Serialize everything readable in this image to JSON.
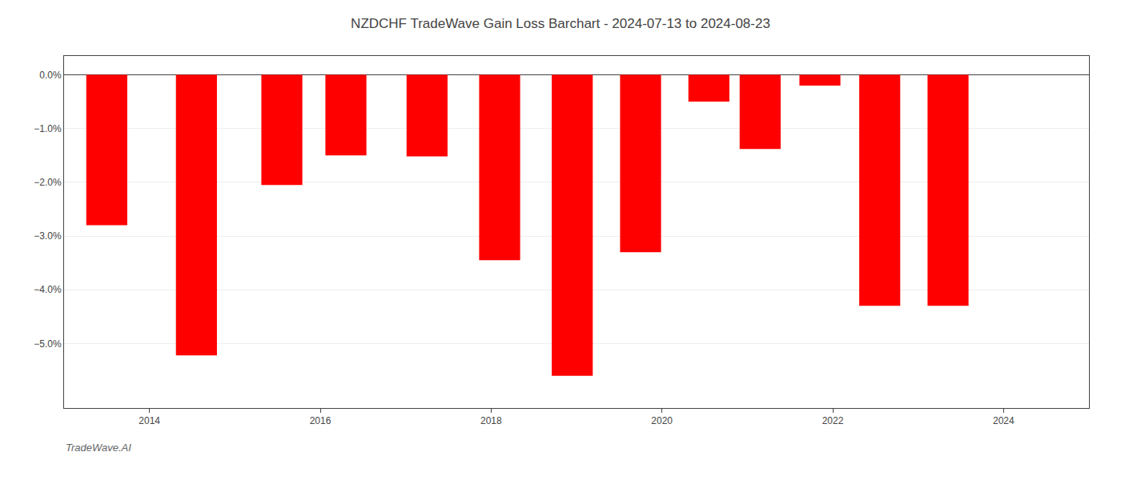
{
  "chart_data": {
    "type": "bar",
    "title": "NZDCHF TradeWave Gain Loss Barchart - 2024-07-13 to 2024-08-23",
    "annotations": [
      "TradeWave.AI"
    ],
    "x": [
      2013.5,
      2014.55,
      2015.55,
      2016.3,
      2017.25,
      2018.1,
      2018.95,
      2019.75,
      2020.55,
      2021.15,
      2021.85,
      2022.55,
      2023.35
    ],
    "values": [
      -2.8,
      -5.22,
      -2.05,
      -1.5,
      -1.52,
      -3.45,
      -5.6,
      -3.3,
      -0.5,
      -1.38,
      -0.2,
      -4.3,
      -4.3
    ],
    "color": "#ff0000",
    "xlim": [
      2013.0,
      2025.0
    ],
    "xticks": [
      2014,
      2016,
      2018,
      2020,
      2022,
      2024
    ],
    "ylim": [
      -6.2,
      0.35
    ],
    "yticks": [
      {
        "value": 0.0,
        "label": "0.0%"
      },
      {
        "value": -1.0,
        "label": "−1.0%"
      },
      {
        "value": -2.0,
        "label": "−2.0%"
      },
      {
        "value": -3.0,
        "label": "−3.0%"
      },
      {
        "value": -4.0,
        "label": "−4.0%"
      },
      {
        "value": -5.0,
        "label": "−5.0%"
      }
    ],
    "grid": true
  }
}
